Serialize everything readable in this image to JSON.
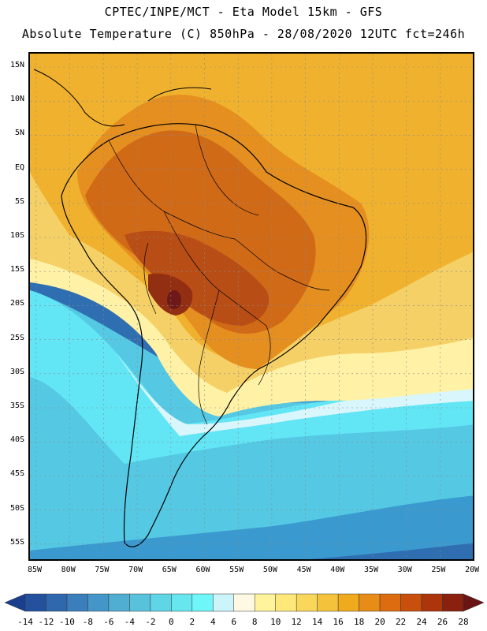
{
  "header": {
    "line1": "CPTEC/INPE/MCT -  Eta Model 15km - GFS",
    "line2": "Absolute Temperature (C) 850hPa - 28/08/2020 12UTC fct=246h"
  },
  "map": {
    "lat_ticks": [
      "15N",
      "10N",
      "5N",
      "EQ",
      "5S",
      "10S",
      "15S",
      "20S",
      "25S",
      "30S",
      "35S",
      "40S",
      "45S",
      "50S",
      "55S"
    ],
    "lon_ticks": [
      "85W",
      "80W",
      "75W",
      "70W",
      "65W",
      "60W",
      "55W",
      "50W",
      "45W",
      "40W",
      "35W",
      "30W",
      "25W",
      "20W"
    ],
    "colors": {
      "ocean_south_deep": "#2f6fb1",
      "ocean_south": "#3a9ad0",
      "ocean_mid": "#55c8e3",
      "ocean_cyan": "#62e6f5",
      "pale_band": "#d8f6fb",
      "cream": "#fff8dc",
      "yellow": "#fff2a6",
      "gold": "#f5d066",
      "orange": "#f0b22e",
      "dark_orange": "#e48f1f",
      "brown": "#d06a17",
      "rust": "#b84e15",
      "dark_rust": "#922e12",
      "maroon": "#6e1818"
    }
  },
  "colorbar": {
    "labels": [
      "-14",
      "-12",
      "-10",
      "-8",
      "-6",
      "-4",
      "-2",
      "0",
      "2",
      "4",
      "6",
      "8",
      "10",
      "12",
      "14",
      "16",
      "18",
      "20",
      "22",
      "24",
      "26",
      "28"
    ],
    "colors": [
      "#1b3f8f",
      "#24519d",
      "#2f68ad",
      "#3a7fbc",
      "#4596c8",
      "#50aed3",
      "#58c2dc",
      "#5fd5e6",
      "#66e6ef",
      "#6ff6f8",
      "#ccf4fb",
      "#fff9e3",
      "#fff49c",
      "#ffe87a",
      "#f9d75a",
      "#f4c23b",
      "#efab1d",
      "#e78c16",
      "#dd6b0f",
      "#c94f0c",
      "#ac350c",
      "#8a210f",
      "#6a1515"
    ]
  }
}
